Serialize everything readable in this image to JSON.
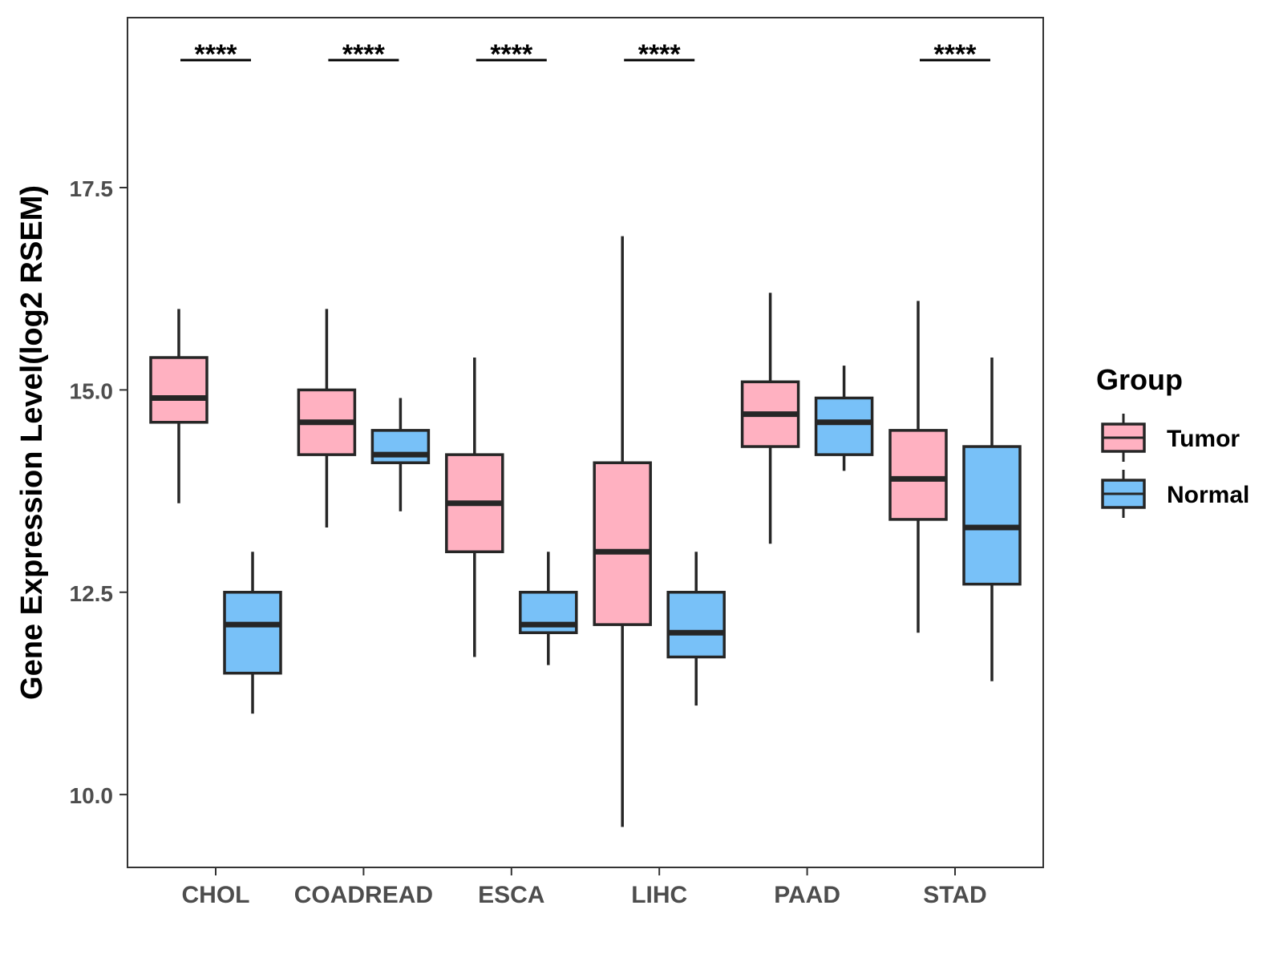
{
  "chart_data": {
    "type": "boxplot",
    "title": "",
    "xlabel": "",
    "ylabel": "Gene Expression Level(log2 RSEM)",
    "ylim": [
      9.1,
      19.6
    ],
    "yticks": [
      "10.0",
      "12.5",
      "15.0",
      "17.5"
    ],
    "ytick_values": [
      10.0,
      12.5,
      15.0,
      17.5
    ],
    "categories": [
      "CHOL",
      "COADREAD",
      "ESCA",
      "LIHC",
      "PAAD",
      "STAD"
    ],
    "legend": {
      "title": "Group",
      "position": "right",
      "entries": [
        {
          "name": "Tumor",
          "color": "#FFB1C1"
        },
        {
          "name": "Normal",
          "color": "#78C1F8"
        }
      ]
    },
    "series": [
      {
        "name": "Tumor",
        "color": "#FFB1C1",
        "boxes": [
          {
            "min": 13.6,
            "q1": 14.6,
            "median": 14.9,
            "q3": 15.4,
            "max": 16.0
          },
          {
            "min": 13.3,
            "q1": 14.2,
            "median": 14.6,
            "q3": 15.0,
            "max": 16.0
          },
          {
            "min": 11.7,
            "q1": 13.0,
            "median": 13.6,
            "q3": 14.2,
            "max": 15.4
          },
          {
            "min": 9.6,
            "q1": 12.1,
            "median": 13.0,
            "q3": 14.1,
            "max": 16.9
          },
          {
            "min": 13.1,
            "q1": 14.3,
            "median": 14.7,
            "q3": 15.1,
            "max": 16.2
          },
          {
            "min": 12.0,
            "q1": 13.4,
            "median": 13.9,
            "q3": 14.5,
            "max": 16.1
          }
        ]
      },
      {
        "name": "Normal",
        "color": "#78C1F8",
        "boxes": [
          {
            "min": 11.0,
            "q1": 11.5,
            "median": 12.1,
            "q3": 12.5,
            "max": 13.0
          },
          {
            "min": 13.5,
            "q1": 14.1,
            "median": 14.2,
            "q3": 14.5,
            "max": 14.9
          },
          {
            "min": 11.6,
            "q1": 12.0,
            "median": 12.1,
            "q3": 12.5,
            "max": 13.0
          },
          {
            "min": 11.1,
            "q1": 11.7,
            "median": 12.0,
            "q3": 12.5,
            "max": 13.0
          },
          {
            "min": 14.0,
            "q1": 14.2,
            "median": 14.6,
            "q3": 14.9,
            "max": 15.3
          },
          {
            "min": 11.4,
            "q1": 12.6,
            "median": 13.3,
            "q3": 14.3,
            "max": 15.4
          }
        ]
      }
    ],
    "annotations": [
      {
        "category": "CHOL",
        "label": "****"
      },
      {
        "category": "COADREAD",
        "label": "****"
      },
      {
        "category": "ESCA",
        "label": "****"
      },
      {
        "category": "LIHC",
        "label": "****"
      },
      {
        "category": "PAAD",
        "label": ""
      },
      {
        "category": "STAD",
        "label": "****"
      }
    ]
  }
}
